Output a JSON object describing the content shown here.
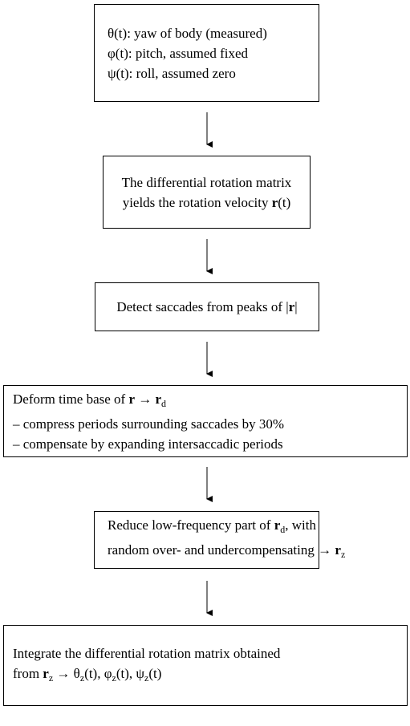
{
  "nodes": [
    {
      "lines": [
        [
          "θ(t): yaw of body (measured)"
        ],
        [
          "φ(t): pitch, assumed fixed"
        ],
        [
          "ψ(t): roll, assumed zero"
        ]
      ]
    },
    {
      "lines": [
        [
          "The differential rotation matrix"
        ],
        [
          "yields the rotation velocity ",
          "r",
          "(t)"
        ]
      ]
    },
    {
      "lines": [
        [
          "Detect saccades from peaks of |",
          "r",
          "|"
        ]
      ]
    },
    {
      "lines": [
        [
          "Deform time base of ",
          "r",
          " → ",
          "r",
          "d"
        ],
        [
          "– compress periods surrounding saccades by 30%"
        ],
        [
          "– compensate by expanding intersaccadic periods"
        ]
      ]
    },
    {
      "lines": [
        [
          "Reduce low-frequency part of ",
          "r",
          "d",
          ", with"
        ],
        [
          "random over- and undercompensating → ",
          "r",
          "z"
        ]
      ]
    },
    {
      "lines": [
        [
          "Integrate the differential rotation matrix obtained"
        ],
        [
          "from ",
          "r",
          "z",
          " → θ",
          "z",
          "(t), φ",
          "z",
          "(t), ψ",
          "z",
          "(t)"
        ]
      ]
    }
  ]
}
